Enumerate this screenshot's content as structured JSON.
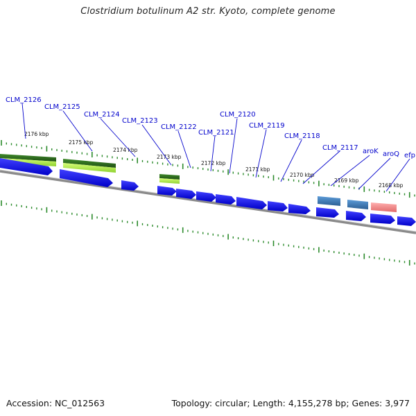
{
  "title": "Clostridium botulinum A2 str. Kyoto, complete genome",
  "footer": {
    "accession": "Accession: NC_012563",
    "summary": "Topology: circular; Length: 4,155,278 bp; Genes: 3,977"
  },
  "colors": {
    "gene_label": "#0000cc",
    "gene_arrow": "#0000ee",
    "tick": "#2a8a2a",
    "backbone": "#888888",
    "feature_green_dark": "#2e6b1f",
    "feature_green_light": "#a6e843",
    "feature_blue": "#3b78b8",
    "feature_red": "#e88888"
  },
  "kbp_labels": [
    "2176 kbp",
    "2175 kbp",
    "2174 kbp",
    "2173 kbp",
    "2172 kbp",
    "2171 kbp",
    "2170 kbp",
    "2169 kbp",
    "2168 kbp"
  ],
  "gene_labels": [
    "CLM_2126",
    "CLM_2125",
    "CLM_2124",
    "CLM_2123",
    "CLM_2122",
    "CLM_2121",
    "CLM_2120",
    "CLM_2119",
    "CLM_2118",
    "CLM_2117",
    "aroK",
    "aroQ",
    "efp"
  ]
}
